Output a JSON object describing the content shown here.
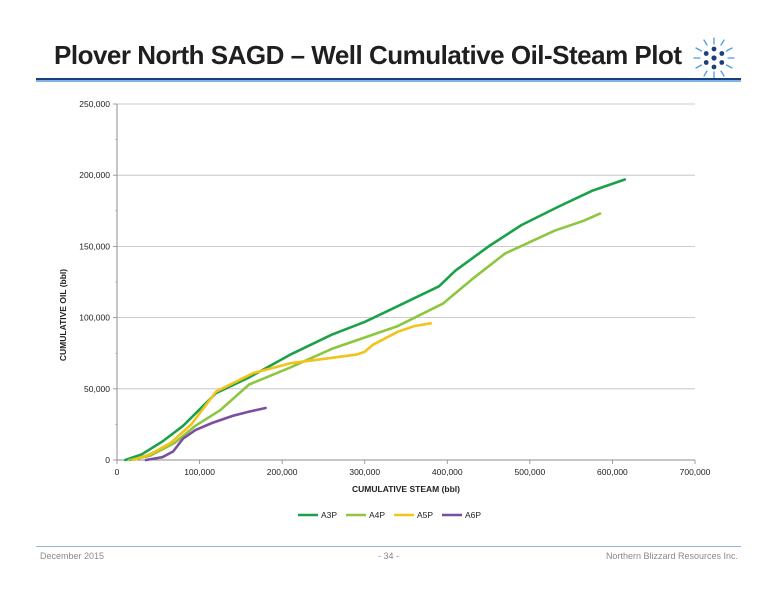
{
  "slide": {
    "title": "Plover North SAGD – Well Cumulative Oil-Steam Plot",
    "logo_icon": "snowflake-icon"
  },
  "footer": {
    "date": "December 2015",
    "page": "- 34 -",
    "company": "Northern Blizzard Resources Inc."
  },
  "chart_data": {
    "type": "line",
    "title": "",
    "xlabel": "CUMULATIVE STEAM (bbl)",
    "ylabel": "CUMULATIVE OIL (bbl)",
    "xlim": [
      0,
      700000
    ],
    "ylim": [
      0,
      250000
    ],
    "x_ticks": [
      0,
      100000,
      200000,
      300000,
      400000,
      500000,
      600000,
      700000
    ],
    "x_tick_labels": [
      "0",
      "100,000",
      "200,000",
      "300,000",
      "400,000",
      "500,000",
      "600,000",
      "700,000"
    ],
    "y_ticks": [
      0,
      50000,
      100000,
      150000,
      200000,
      250000
    ],
    "y_tick_labels": [
      "0",
      "50,000",
      "100,000",
      "150,000",
      "200,000",
      "250,000"
    ],
    "grid": "horizontal",
    "legend": "bottom",
    "series": [
      {
        "name": "A3P",
        "color": "#1aa14a",
        "x": [
          10000,
          30000,
          55000,
          80000,
          120000,
          160000,
          210000,
          260000,
          300000,
          340000,
          390000,
          410000,
          450000,
          490000,
          535000,
          575000,
          615000
        ],
        "y": [
          0,
          4000,
          13000,
          24000,
          47000,
          58000,
          74000,
          88000,
          97000,
          108000,
          122000,
          133000,
          150000,
          165000,
          178000,
          189000,
          197000
        ]
      },
      {
        "name": "A4P",
        "color": "#8dc63f",
        "x": [
          15000,
          40000,
          70000,
          95000,
          125000,
          160000,
          210000,
          260000,
          300000,
          340000,
          395000,
          430000,
          470000,
          530000,
          565000,
          585000
        ],
        "y": [
          0,
          3000,
          12000,
          24000,
          35000,
          53000,
          65000,
          78000,
          86000,
          94000,
          110000,
          127000,
          145000,
          161000,
          168000,
          173000
        ]
      },
      {
        "name": "A5P",
        "color": "#f3c21b",
        "x": [
          20000,
          40000,
          65000,
          90000,
          120000,
          165000,
          210000,
          250000,
          290000,
          300000,
          310000,
          340000,
          360000,
          380000
        ],
        "y": [
          0,
          4000,
          12000,
          25000,
          48000,
          61000,
          68000,
          71000,
          74000,
          76000,
          81000,
          90000,
          94000,
          96000
        ]
      },
      {
        "name": "A6P",
        "color": "#7b4fa0",
        "x": [
          35000,
          55000,
          68000,
          80000,
          95000,
          115000,
          140000,
          160000,
          180000
        ],
        "y": [
          0,
          2000,
          6000,
          15000,
          21000,
          26000,
          31000,
          34000,
          36500
        ]
      }
    ]
  }
}
